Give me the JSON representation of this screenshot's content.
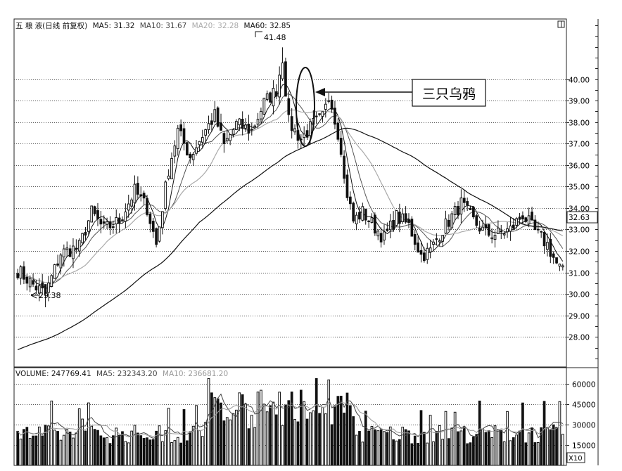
{
  "header": {
    "stock_name": "五 粮 液(日线 前复权)",
    "ma5": "MA5: 31.32",
    "ma10": "MA10: 31.67",
    "ma20": "MA20: 32.28",
    "ma60": "MA60: 32.85"
  },
  "volume_header": {
    "volume": "VOLUME: 247769.41",
    "ma5": "MA5: 232343.20",
    "ma10": "MA10: 236681.20"
  },
  "annotations": {
    "high_label": "41.48",
    "low_label": "29.38",
    "pattern_label": "三只乌鸦",
    "last_price": "32.63",
    "volume_unit": "X10"
  },
  "colors": {
    "up": "#ffffff",
    "down": "#111111",
    "ma5": "#111111",
    "ma10": "#555555",
    "ma20": "#aaaaaa",
    "ma60": "#111111",
    "grid": "#555555"
  },
  "chart_data": [
    {
      "type": "candlestick",
      "ylim": [
        26.6,
        42.8
      ],
      "y_ticks": [
        "40.00",
        "39.00",
        "38.00",
        "37.00",
        "36.00",
        "35.00",
        "34.00",
        "33.00",
        "32.00",
        "31.00",
        "30.00",
        "29.00",
        "28.00"
      ],
      "y_tick_values": [
        40,
        39,
        38,
        37,
        36,
        35,
        34,
        33,
        32,
        31,
        30,
        29,
        28
      ],
      "series": [
        {
          "name": "MA5",
          "values": []
        },
        {
          "name": "MA10",
          "values": []
        },
        {
          "name": "MA20",
          "values": []
        },
        {
          "name": "MA60",
          "values": []
        }
      ],
      "key_points": [
        {
          "label": "41.48",
          "value": 41.48
        },
        {
          "label": "29.38",
          "value": 29.38
        }
      ],
      "pattern": "三只乌鸦",
      "last_price": 32.63,
      "price_path": [
        [
          0,
          31.1
        ],
        [
          6,
          30.3
        ],
        [
          9,
          30.0
        ],
        [
          14,
          31.9
        ],
        [
          20,
          32.2
        ],
        [
          24,
          33.8
        ],
        [
          28,
          33.0
        ],
        [
          33,
          33.4
        ],
        [
          38,
          34.8
        ],
        [
          42,
          34.0
        ],
        [
          45,
          32.3
        ],
        [
          49,
          35.8
        ],
        [
          52,
          37.6
        ],
        [
          56,
          36.4
        ],
        [
          60,
          37.4
        ],
        [
          64,
          38.3
        ],
        [
          67,
          36.9
        ],
        [
          71,
          37.9
        ],
        [
          76,
          37.6
        ],
        [
          80,
          38.9
        ],
        [
          84,
          39.5
        ],
        [
          86,
          41.0
        ],
        [
          88,
          38.0
        ],
        [
          92,
          37.2
        ],
        [
          96,
          37.9
        ],
        [
          99,
          38.2
        ],
        [
          101,
          39.1
        ],
        [
          103,
          38.4
        ],
        [
          106,
          35.3
        ],
        [
          109,
          33.4
        ],
        [
          112,
          33.8
        ],
        [
          116,
          33.1
        ],
        [
          119,
          32.6
        ],
        [
          123,
          33.6
        ],
        [
          127,
          33.2
        ],
        [
          131,
          31.8
        ],
        [
          134,
          32.0
        ],
        [
          137,
          32.8
        ],
        [
          141,
          33.6
        ],
        [
          144,
          34.2
        ],
        [
          148,
          33.4
        ],
        [
          152,
          32.8
        ],
        [
          156,
          32.8
        ],
        [
          160,
          33.0
        ],
        [
          164,
          33.7
        ],
        [
          168,
          32.9
        ],
        [
          172,
          32.3
        ],
        [
          175,
          31.4
        ],
        [
          177,
          31.0
        ]
      ]
    },
    {
      "type": "bar",
      "ylim": [
        0,
        72000
      ],
      "y_ticks": [
        "60000",
        "45000",
        "30000",
        "15000"
      ],
      "y_tick_values": [
        60000,
        45000,
        30000,
        15000
      ],
      "series": [
        {
          "name": "VOLUME",
          "values": []
        },
        {
          "name": "MA5",
          "values": []
        },
        {
          "name": "MA10",
          "values": []
        }
      ]
    }
  ]
}
